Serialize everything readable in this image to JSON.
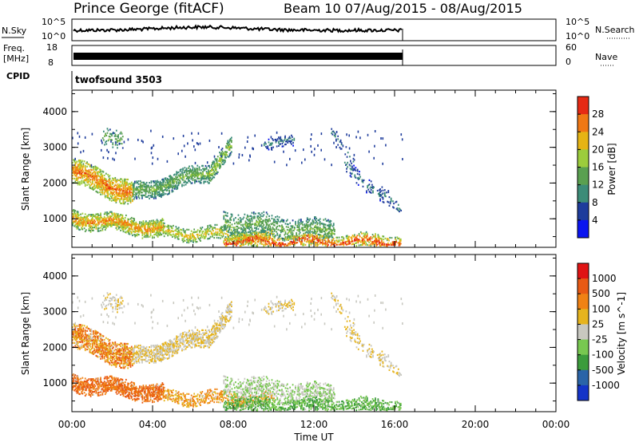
{
  "header": {
    "station": "Prince George (fitACF)",
    "beam_text": "Beam 10 07/Aug/2015 - 08/Aug/2015"
  },
  "top_panels": {
    "nsky": {
      "label_left": "N.Sky",
      "tick_left": [
        "10^5",
        "10^0"
      ],
      "tick_right": [
        "10^5",
        "10^0"
      ],
      "label_right": "N.Search"
    },
    "freq": {
      "label_left_1": "Freq.",
      "label_left_2": "[MHz]",
      "tick_left": [
        "18",
        "8"
      ],
      "tick_right": [
        "60",
        "0"
      ],
      "label_right": "Nave"
    },
    "cpid": {
      "label_left": "CPID",
      "value": "twofsound 3503"
    }
  },
  "chart_data": [
    {
      "type": "heatmap",
      "name": "power",
      "ylabel": "Slant Range [km]",
      "yticks": [
        "1000",
        "2000",
        "3000",
        "4000"
      ],
      "ylim": [
        200,
        4600
      ],
      "xlim_hours": [
        0,
        24
      ],
      "data_end_hour": 16.5,
      "colorbar": {
        "label": "Power [dB]",
        "ticks": [
          "4",
          "8",
          "12",
          "16",
          "20",
          "24",
          "28"
        ],
        "colors": [
          "#0a14f0",
          "#1e3c9c",
          "#3c8c78",
          "#5aa050",
          "#9ccc3c",
          "#e6b414",
          "#f07814",
          "#e62a14"
        ]
      }
    },
    {
      "type": "heatmap",
      "name": "velocity",
      "ylabel": "Slant Range [km]",
      "yticks": [
        "1000",
        "2000",
        "3000",
        "4000"
      ],
      "ylim": [
        200,
        4600
      ],
      "xlim_hours": [
        0,
        24
      ],
      "data_end_hour": 16.5,
      "colorbar": {
        "label": "Velocity [m s^-1]",
        "ticks": [
          "1000",
          "500",
          "100",
          "25",
          "-25",
          "-100",
          "-500",
          "-1000"
        ],
        "colors": [
          "#1434c8",
          "#2a64a8",
          "#3c9c3c",
          "#78c850",
          "#c8c8c0",
          "#e6b41e",
          "#f08214",
          "#e85a14",
          "#e01414"
        ]
      }
    }
  ],
  "xaxis": {
    "ticks": [
      "00:00",
      "04:00",
      "08:00",
      "12:00",
      "16:00",
      "20:00",
      "00:00"
    ],
    "label": "Time UT"
  }
}
